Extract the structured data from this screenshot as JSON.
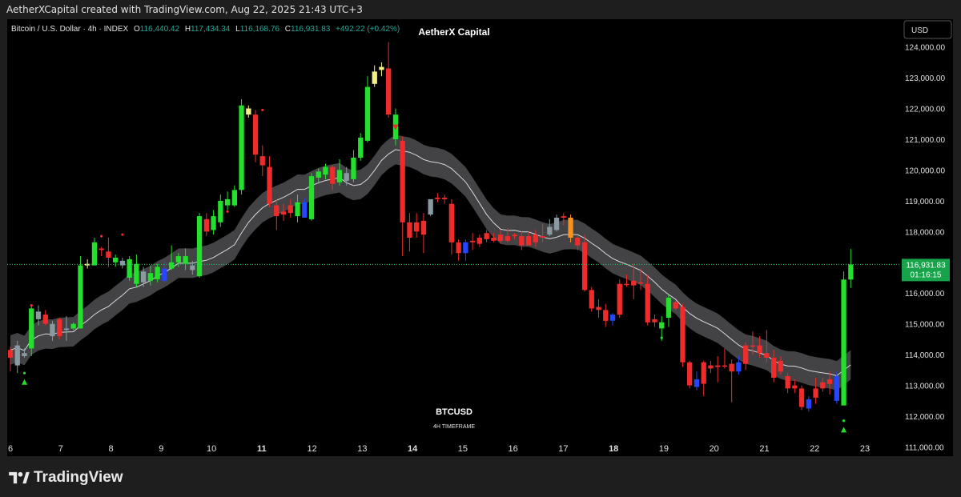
{
  "credit": "AetherXCapital created with TradingView.com, Aug 22, 2025 21:43 UTC+3",
  "brand": "TradingView",
  "chart_data": {
    "type": "candlestick",
    "title": "AetherX Capital",
    "symbol_text": "BTCUSD",
    "timeframe_text": "4H TIMEFRAME",
    "legend": {
      "name": "Bitcoin / U.S. Dollar · 4h · INDEX",
      "o_label": "O",
      "o": "116,440.42",
      "h_label": "H",
      "h": "117,434.34",
      "l_label": "L",
      "l": "116,168.76",
      "c_label": "C",
      "c": "116,931.83",
      "change": "+492.22 (+0.42%)"
    },
    "currency": "USD",
    "last_price": "116,931.83",
    "countdown": "01:16:15",
    "last_price_value": 116931.83,
    "ylim": [
      110700,
      124900
    ],
    "y_ticks": [
      "124,000.00",
      "123,000.00",
      "122,000.00",
      "121,000.00",
      "120,000.00",
      "119,000.00",
      "118,000.00",
      "117,000.00",
      "116,000.00",
      "115,000.00",
      "114,000.00",
      "113,000.00",
      "112,000.00",
      "111,000.00"
    ],
    "y_tick_values": [
      124000,
      123000,
      122000,
      121000,
      120000,
      119000,
      118000,
      117000,
      116000,
      115000,
      114000,
      113000,
      112000,
      111000
    ],
    "x_ticks": [
      "6",
      "7",
      "8",
      "9",
      "10",
      "11",
      "12",
      "13",
      "14",
      "15",
      "16",
      "17",
      "18",
      "19",
      "20",
      "21",
      "22",
      "23"
    ],
    "candles": [
      [
        113900,
        114150,
        113450,
        114250,
        "red"
      ],
      [
        113650,
        114300,
        113400,
        114450,
        "gray"
      ],
      [
        114050,
        113950,
        113900,
        114200,
        "gray"
      ],
      [
        114200,
        115500,
        113950,
        115600,
        "green"
      ],
      [
        115400,
        115150,
        114950,
        115600,
        "gray"
      ],
      [
        115300,
        115000,
        114950,
        115450,
        "red"
      ],
      [
        115000,
        114600,
        114450,
        115100,
        "gray"
      ],
      [
        114600,
        115150,
        114500,
        115200,
        "red"
      ],
      [
        114850,
        114800,
        114450,
        115250,
        "gray"
      ],
      [
        115000,
        114850,
        114800,
        115050,
        "green"
      ],
      [
        114850,
        116900,
        114850,
        117200,
        "green"
      ],
      [
        116900,
        116950,
        116800,
        117100,
        "yellow"
      ],
      [
        116900,
        117650,
        116900,
        117800,
        "green"
      ],
      [
        117450,
        117400,
        117200,
        117500,
        "red"
      ],
      [
        117350,
        117150,
        116850,
        117800,
        "red"
      ],
      [
        117150,
        117000,
        116850,
        117250,
        "green"
      ],
      [
        117050,
        116900,
        116800,
        117150,
        "gray"
      ],
      [
        116500,
        117100,
        116400,
        117200,
        "green"
      ],
      [
        116950,
        116300,
        116200,
        117250,
        "green"
      ],
      [
        116350,
        116700,
        116200,
        116850,
        "gray"
      ],
      [
        116400,
        116650,
        116250,
        116900,
        "green"
      ],
      [
        116450,
        116850,
        116350,
        116950,
        "green"
      ],
      [
        116400,
        116800,
        116350,
        117100,
        "blue"
      ],
      [
        116800,
        117000,
        116750,
        117550,
        "green"
      ],
      [
        117000,
        117200,
        116850,
        117300,
        "green"
      ],
      [
        117200,
        116950,
        116750,
        117450,
        "green"
      ],
      [
        116750,
        116900,
        116600,
        117050,
        "gray"
      ],
      [
        116550,
        118500,
        116500,
        118600,
        "green"
      ],
      [
        118400,
        118000,
        117850,
        118600,
        "red"
      ],
      [
        118050,
        118500,
        117900,
        118700,
        "green"
      ],
      [
        118300,
        119000,
        118150,
        119200,
        "green"
      ],
      [
        119050,
        118850,
        118700,
        119300,
        "green"
      ],
      [
        118850,
        119350,
        118800,
        119500,
        "green"
      ],
      [
        119350,
        122100,
        119200,
        122300,
        "green"
      ],
      [
        122000,
        121800,
        121700,
        122100,
        "yellow"
      ],
      [
        121800,
        120500,
        120250,
        121950,
        "red"
      ],
      [
        120450,
        120150,
        119800,
        120800,
        "red"
      ],
      [
        120100,
        118900,
        118800,
        120450,
        "red"
      ],
      [
        118850,
        118500,
        118050,
        119050,
        "red"
      ],
      [
        118550,
        118650,
        118350,
        118900,
        "red"
      ],
      [
        118600,
        118850,
        118450,
        119050,
        "red"
      ],
      [
        118500,
        118950,
        118300,
        119200,
        "green"
      ],
      [
        118950,
        118450,
        118450,
        119100,
        "blue"
      ],
      [
        118400,
        119800,
        118350,
        119900,
        "green"
      ],
      [
        119750,
        119950,
        119550,
        120050,
        "green"
      ],
      [
        119850,
        120100,
        119700,
        120200,
        "green"
      ],
      [
        120100,
        119550,
        119350,
        120150,
        "red"
      ],
      [
        119600,
        120000,
        119500,
        120350,
        "green"
      ],
      [
        119900,
        119650,
        119500,
        120100,
        "gray"
      ],
      [
        119700,
        120400,
        119600,
        120650,
        "green"
      ],
      [
        120400,
        121050,
        120300,
        121200,
        "green"
      ],
      [
        120950,
        122700,
        120900,
        123050,
        "green"
      ],
      [
        122800,
        123200,
        122700,
        123400,
        "yellow"
      ],
      [
        123250,
        123350,
        123050,
        123500,
        "yellow"
      ],
      [
        123300,
        121800,
        121700,
        124150,
        "red"
      ],
      [
        121800,
        121000,
        120800,
        122000,
        "green"
      ],
      [
        120950,
        118300,
        117200,
        121100,
        "red"
      ],
      [
        118300,
        117800,
        117350,
        118600,
        "red"
      ],
      [
        118000,
        118300,
        117800,
        118600,
        "red"
      ],
      [
        118350,
        117900,
        117300,
        118600,
        "red"
      ],
      [
        118550,
        119050,
        118500,
        119050,
        "gray"
      ],
      [
        119050,
        119100,
        118950,
        119250,
        "red"
      ],
      [
        119100,
        119050,
        118900,
        119200,
        "red"
      ],
      [
        118900,
        117650,
        117250,
        119050,
        "red"
      ],
      [
        117650,
        117300,
        117050,
        117750,
        "red"
      ],
      [
        117300,
        117650,
        117050,
        117750,
        "blue"
      ],
      [
        117650,
        117700,
        117400,
        117950,
        "red"
      ],
      [
        117600,
        117800,
        117500,
        117900,
        "red"
      ],
      [
        117750,
        117950,
        117650,
        118050,
        "red"
      ],
      [
        117800,
        117700,
        117650,
        117950,
        "red"
      ],
      [
        117700,
        117900,
        117600,
        118050,
        "red"
      ],
      [
        117850,
        117700,
        117650,
        118100,
        "red"
      ],
      [
        117900,
        117850,
        117750,
        117950,
        "red"
      ],
      [
        117850,
        117550,
        117400,
        118000,
        "red"
      ],
      [
        117550,
        117850,
        117550,
        118000,
        "red"
      ],
      [
        117650,
        117900,
        117500,
        118050,
        "red"
      ],
      [
        117850,
        117800,
        117650,
        118250,
        "red"
      ],
      [
        117900,
        118150,
        117850,
        118400,
        "gray"
      ],
      [
        118050,
        118450,
        118000,
        118550,
        "gray"
      ],
      [
        118450,
        118500,
        118200,
        118600,
        "red"
      ],
      [
        118450,
        117800,
        117650,
        118550,
        "orange"
      ],
      [
        117800,
        117550,
        117400,
        117850,
        "red"
      ],
      [
        117650,
        116100,
        116050,
        117900,
        "red"
      ],
      [
        116100,
        115500,
        115400,
        116200,
        "red"
      ],
      [
        115550,
        115450,
        115200,
        115800,
        "red"
      ],
      [
        115450,
        115100,
        114900,
        115650,
        "red"
      ],
      [
        115100,
        115300,
        114950,
        115350,
        "blue"
      ],
      [
        115300,
        116300,
        115200,
        116450,
        "red"
      ],
      [
        116300,
        116300,
        116200,
        116600,
        "red"
      ],
      [
        116250,
        116400,
        115800,
        116950,
        "red"
      ],
      [
        116350,
        116350,
        116100,
        116800,
        "red"
      ],
      [
        116300,
        115050,
        114950,
        116600,
        "red"
      ],
      [
        115050,
        115150,
        114900,
        115300,
        "red"
      ],
      [
        114850,
        115050,
        114450,
        115250,
        "green"
      ],
      [
        115200,
        115850,
        114900,
        115950,
        "green"
      ],
      [
        115700,
        115500,
        115450,
        115750,
        "red"
      ],
      [
        115550,
        113750,
        113600,
        115650,
        "red"
      ],
      [
        113750,
        113000,
        112900,
        113800,
        "red"
      ],
      [
        112950,
        113200,
        112850,
        113450,
        "blue"
      ],
      [
        113050,
        113750,
        112650,
        113800,
        "red"
      ],
      [
        113650,
        113550,
        113400,
        113800,
        "red"
      ],
      [
        113600,
        113650,
        113100,
        113950,
        "red"
      ],
      [
        113650,
        113650,
        113550,
        114200,
        "red"
      ],
      [
        113700,
        113450,
        112450,
        113850,
        "red"
      ],
      [
        113450,
        113750,
        113350,
        113950,
        "blue"
      ],
      [
        113700,
        114300,
        113500,
        114400,
        "red"
      ],
      [
        114300,
        114300,
        114000,
        114750,
        "red"
      ],
      [
        114300,
        114050,
        113900,
        114600,
        "red"
      ],
      [
        114050,
        113900,
        113750,
        114800,
        "red"
      ],
      [
        113900,
        113250,
        113100,
        114150,
        "red"
      ],
      [
        113450,
        113800,
        113350,
        113950,
        "red"
      ],
      [
        113300,
        112900,
        112750,
        113400,
        "red"
      ],
      [
        113000,
        112900,
        112750,
        113200,
        "red"
      ],
      [
        112900,
        112300,
        112200,
        113000,
        "red"
      ],
      [
        112250,
        112550,
        112150,
        112650,
        "blue"
      ],
      [
        112600,
        112900,
        112400,
        113250,
        "red"
      ],
      [
        112900,
        113100,
        112800,
        113250,
        "red"
      ],
      [
        113050,
        113200,
        112700,
        113450,
        "red"
      ],
      [
        113300,
        112500,
        112400,
        113450,
        "blue"
      ],
      [
        112350,
        116440,
        112350,
        116700,
        "green"
      ],
      [
        116440,
        116932,
        116169,
        117434,
        "green"
      ]
    ]
  }
}
